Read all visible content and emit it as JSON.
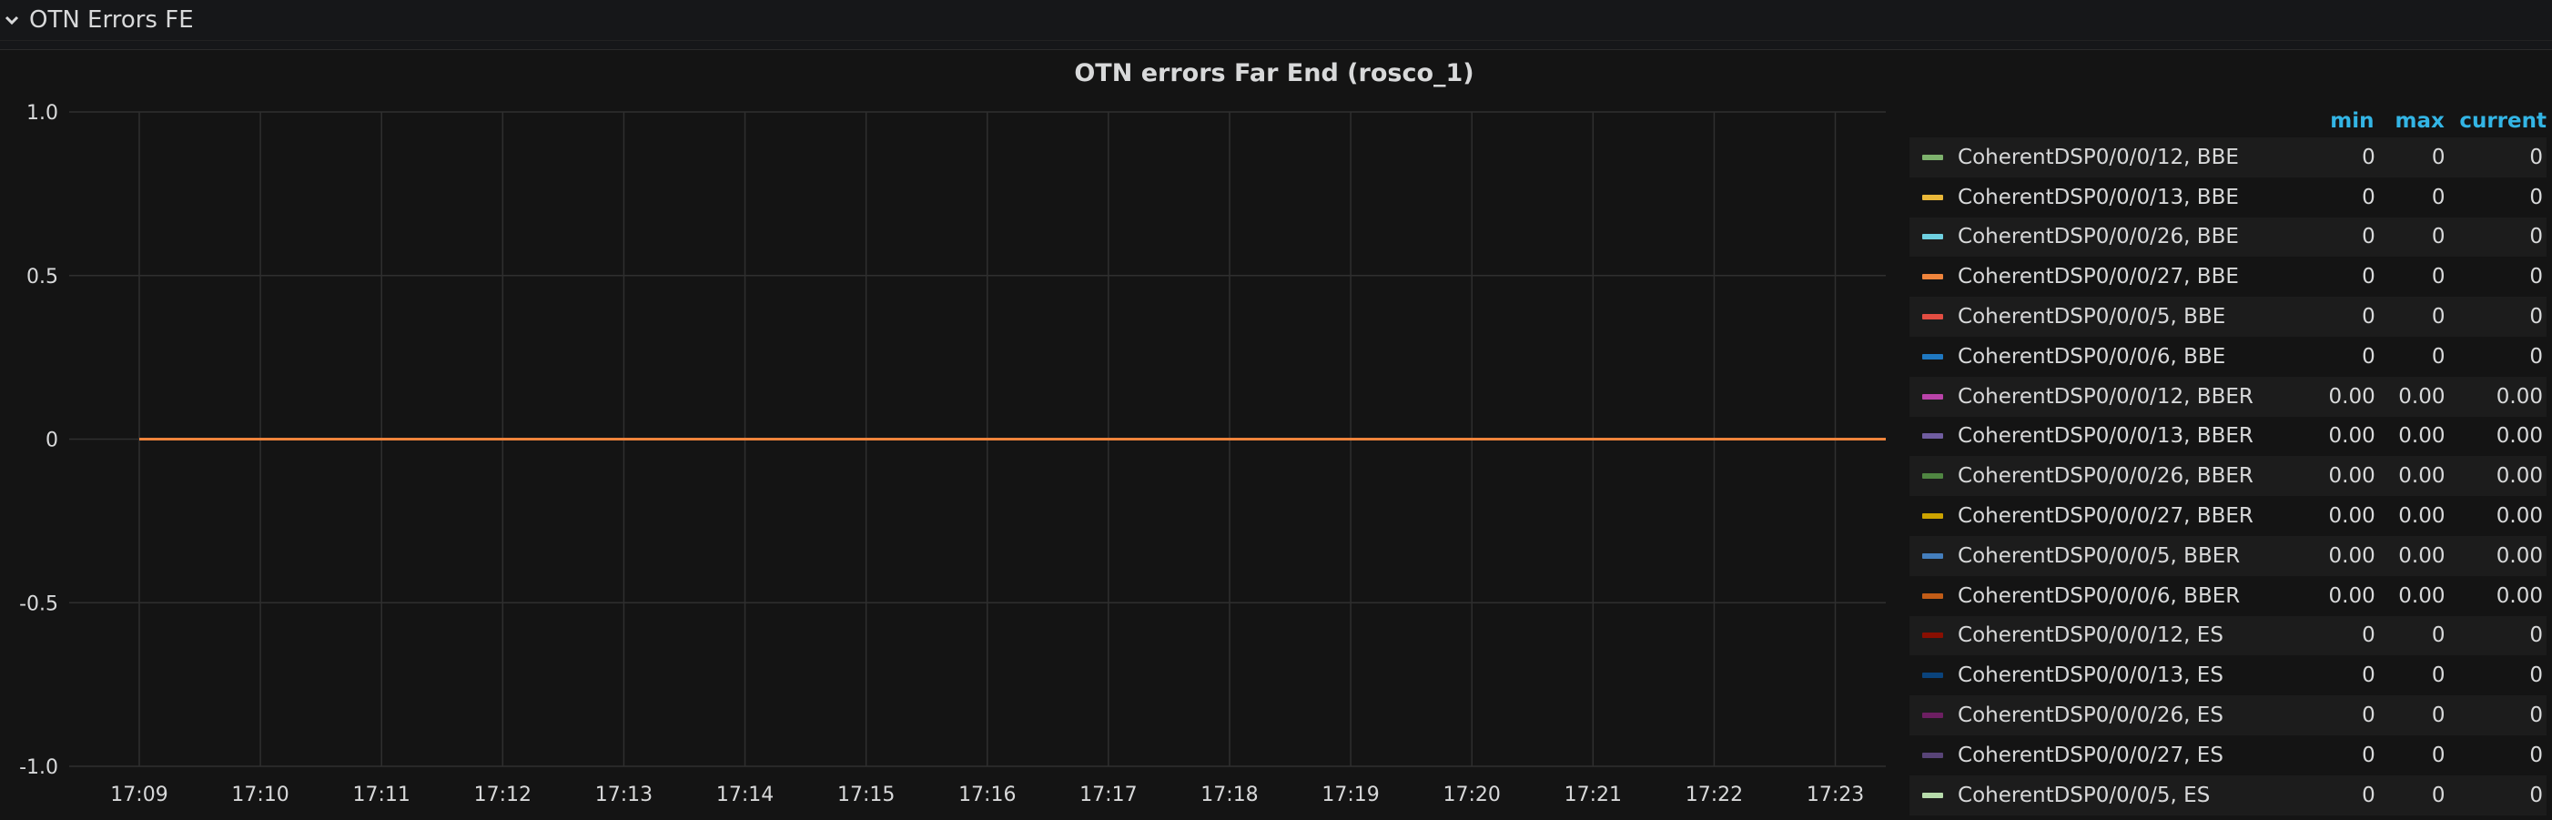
{
  "row": {
    "title": "OTN Errors FE",
    "icon": "chevron-down-icon"
  },
  "panel": {
    "title": "OTN errors Far End (rosco_1)"
  },
  "legend": {
    "headers": {
      "min": "min",
      "max": "max",
      "current": "current"
    }
  },
  "chart_data": {
    "type": "line",
    "title": "OTN errors Far End (rosco_1)",
    "xlabel": "",
    "ylabel": "",
    "ylim": [
      -1.0,
      1.0
    ],
    "y_ticks": [
      "1.0",
      "0.5",
      "0",
      "-0.5",
      "-1.0"
    ],
    "x_ticks": [
      "17:09",
      "17:10",
      "17:11",
      "17:12",
      "17:13",
      "17:14",
      "17:15",
      "17:16",
      "17:17",
      "17:18",
      "17:19",
      "17:20",
      "17:21",
      "17:22",
      "17:23"
    ],
    "x_range": [
      "17:09",
      "17:23:25"
    ],
    "grid": true,
    "legend_position": "right",
    "series": [
      {
        "name": "CoherentDSP0/0/0/12, BBE",
        "color": "#7eb26d",
        "min": "0",
        "max": "0",
        "current": "0",
        "values": [
          0,
          0
        ]
      },
      {
        "name": "CoherentDSP0/0/0/13, BBE",
        "color": "#eab839",
        "min": "0",
        "max": "0",
        "current": "0",
        "values": [
          0,
          0
        ]
      },
      {
        "name": "CoherentDSP0/0/0/26, BBE",
        "color": "#6ed0e0",
        "min": "0",
        "max": "0",
        "current": "0",
        "values": [
          0,
          0
        ]
      },
      {
        "name": "CoherentDSP0/0/0/27, BBE",
        "color": "#ef843c",
        "min": "0",
        "max": "0",
        "current": "0",
        "values": [
          0,
          0
        ]
      },
      {
        "name": "CoherentDSP0/0/0/5, BBE",
        "color": "#e24d42",
        "min": "0",
        "max": "0",
        "current": "0",
        "values": [
          0,
          0
        ]
      },
      {
        "name": "CoherentDSP0/0/0/6, BBE",
        "color": "#1f78c1",
        "min": "0",
        "max": "0",
        "current": "0",
        "values": [
          0,
          0
        ]
      },
      {
        "name": "CoherentDSP0/0/0/12, BBER",
        "color": "#ba43a9",
        "min": "0.00",
        "max": "0.00",
        "current": "0.00",
        "values": [
          0,
          0
        ]
      },
      {
        "name": "CoherentDSP0/0/0/13, BBER",
        "color": "#705da0",
        "min": "0.00",
        "max": "0.00",
        "current": "0.00",
        "values": [
          0,
          0
        ]
      },
      {
        "name": "CoherentDSP0/0/0/26, BBER",
        "color": "#508642",
        "min": "0.00",
        "max": "0.00",
        "current": "0.00",
        "values": [
          0,
          0
        ]
      },
      {
        "name": "CoherentDSP0/0/0/27, BBER",
        "color": "#cca300",
        "min": "0.00",
        "max": "0.00",
        "current": "0.00",
        "values": [
          0,
          0
        ]
      },
      {
        "name": "CoherentDSP0/0/0/5, BBER",
        "color": "#447ebc",
        "min": "0.00",
        "max": "0.00",
        "current": "0.00",
        "values": [
          0,
          0
        ]
      },
      {
        "name": "CoherentDSP0/0/0/6, BBER",
        "color": "#c15c17",
        "min": "0.00",
        "max": "0.00",
        "current": "0.00",
        "values": [
          0,
          0
        ]
      },
      {
        "name": "CoherentDSP0/0/0/12, ES",
        "color": "#890f02",
        "min": "0",
        "max": "0",
        "current": "0",
        "values": [
          0,
          0
        ]
      },
      {
        "name": "CoherentDSP0/0/0/13, ES",
        "color": "#0a437c",
        "min": "0",
        "max": "0",
        "current": "0",
        "values": [
          0,
          0
        ]
      },
      {
        "name": "CoherentDSP0/0/0/26, ES",
        "color": "#6d1f62",
        "min": "0",
        "max": "0",
        "current": "0",
        "values": [
          0,
          0
        ]
      },
      {
        "name": "CoherentDSP0/0/0/27, ES",
        "color": "#584477",
        "min": "0",
        "max": "0",
        "current": "0",
        "values": [
          0,
          0
        ]
      },
      {
        "name": "CoherentDSP0/0/0/5, ES",
        "color": "#b7dbab",
        "min": "0",
        "max": "0",
        "current": "0",
        "values": [
          0,
          0
        ]
      }
    ]
  }
}
